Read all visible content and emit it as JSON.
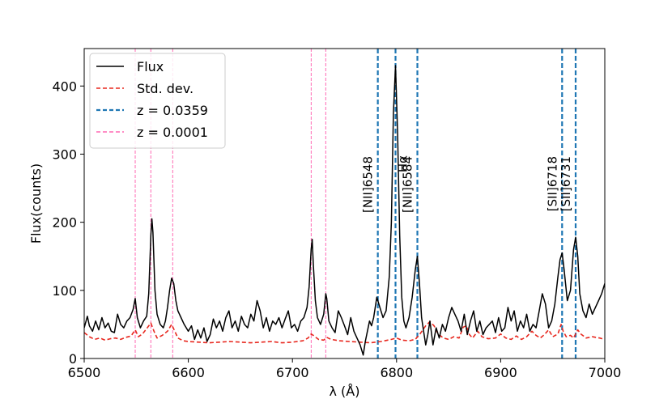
{
  "chart_data": {
    "type": "line",
    "title": "",
    "xlabel": "λ (Å)",
    "ylabel": "Flux(counts)",
    "xlim": [
      6500,
      7000
    ],
    "ylim": [
      0,
      455
    ],
    "xticks": [
      6500,
      6600,
      6700,
      6800,
      6900,
      7000
    ],
    "yticks": [
      0,
      100,
      200,
      300,
      400
    ],
    "grid": false,
    "legend_position": "top-left",
    "series": [
      {
        "name": "Flux",
        "color": "#000000",
        "style": "solid",
        "points": [
          [
            6500,
            45
          ],
          [
            6503,
            62
          ],
          [
            6505,
            48
          ],
          [
            6508,
            40
          ],
          [
            6511,
            55
          ],
          [
            6514,
            42
          ],
          [
            6517,
            60
          ],
          [
            6520,
            45
          ],
          [
            6523,
            52
          ],
          [
            6526,
            40
          ],
          [
            6529,
            38
          ],
          [
            6532,
            65
          ],
          [
            6535,
            50
          ],
          [
            6538,
            45
          ],
          [
            6541,
            55
          ],
          [
            6544,
            60
          ],
          [
            6547,
            72
          ],
          [
            6549,
            88
          ],
          [
            6551,
            60
          ],
          [
            6554,
            45
          ],
          [
            6557,
            55
          ],
          [
            6560,
            62
          ],
          [
            6562,
            95
          ],
          [
            6564,
            180
          ],
          [
            6565,
            205
          ],
          [
            6566,
            185
          ],
          [
            6568,
            100
          ],
          [
            6570,
            65
          ],
          [
            6573,
            50
          ],
          [
            6576,
            45
          ],
          [
            6578,
            55
          ],
          [
            6580,
            75
          ],
          [
            6582,
            100
          ],
          [
            6584,
            118
          ],
          [
            6586,
            110
          ],
          [
            6588,
            85
          ],
          [
            6590,
            70
          ],
          [
            6593,
            60
          ],
          [
            6596,
            50
          ],
          [
            6600,
            40
          ],
          [
            6603,
            48
          ],
          [
            6606,
            28
          ],
          [
            6609,
            42
          ],
          [
            6612,
            30
          ],
          [
            6615,
            45
          ],
          [
            6618,
            25
          ],
          [
            6621,
            35
          ],
          [
            6624,
            58
          ],
          [
            6627,
            45
          ],
          [
            6630,
            55
          ],
          [
            6633,
            40
          ],
          [
            6636,
            60
          ],
          [
            6639,
            70
          ],
          [
            6642,
            45
          ],
          [
            6645,
            55
          ],
          [
            6648,
            40
          ],
          [
            6651,
            62
          ],
          [
            6654,
            50
          ],
          [
            6657,
            45
          ],
          [
            6660,
            65
          ],
          [
            6663,
            55
          ],
          [
            6666,
            85
          ],
          [
            6669,
            70
          ],
          [
            6672,
            45
          ],
          [
            6675,
            60
          ],
          [
            6678,
            40
          ],
          [
            6681,
            55
          ],
          [
            6684,
            50
          ],
          [
            6687,
            60
          ],
          [
            6690,
            45
          ],
          [
            6693,
            58
          ],
          [
            6696,
            70
          ],
          [
            6699,
            45
          ],
          [
            6702,
            50
          ],
          [
            6705,
            40
          ],
          [
            6708,
            55
          ],
          [
            6711,
            60
          ],
          [
            6714,
            75
          ],
          [
            6716,
            105
          ],
          [
            6718,
            160
          ],
          [
            6719,
            175
          ],
          [
            6720,
            140
          ],
          [
            6722,
            85
          ],
          [
            6724,
            60
          ],
          [
            6727,
            50
          ],
          [
            6730,
            65
          ],
          [
            6732,
            95
          ],
          [
            6733,
            88
          ],
          [
            6735,
            55
          ],
          [
            6738,
            45
          ],
          [
            6741,
            38
          ],
          [
            6744,
            70
          ],
          [
            6747,
            60
          ],
          [
            6750,
            48
          ],
          [
            6753,
            35
          ],
          [
            6756,
            60
          ],
          [
            6759,
            40
          ],
          [
            6762,
            30
          ],
          [
            6765,
            20
          ],
          [
            6768,
            5
          ],
          [
            6770,
            25
          ],
          [
            6772,
            40
          ],
          [
            6774,
            55
          ],
          [
            6776,
            48
          ],
          [
            6778,
            60
          ],
          [
            6781,
            90
          ],
          [
            6784,
            75
          ],
          [
            6787,
            60
          ],
          [
            6790,
            70
          ],
          [
            6793,
            120
          ],
          [
            6795,
            200
          ],
          [
            6797,
            360
          ],
          [
            6799,
            430
          ],
          [
            6801,
            330
          ],
          [
            6803,
            180
          ],
          [
            6805,
            90
          ],
          [
            6807,
            55
          ],
          [
            6809,
            45
          ],
          [
            6812,
            60
          ],
          [
            6815,
            90
          ],
          [
            6818,
            130
          ],
          [
            6820,
            150
          ],
          [
            6822,
            110
          ],
          [
            6824,
            60
          ],
          [
            6826,
            40
          ],
          [
            6828,
            20
          ],
          [
            6830,
            35
          ],
          [
            6832,
            55
          ],
          [
            6835,
            20
          ],
          [
            6838,
            45
          ],
          [
            6841,
            30
          ],
          [
            6844,
            50
          ],
          [
            6847,
            40
          ],
          [
            6850,
            60
          ],
          [
            6853,
            75
          ],
          [
            6856,
            65
          ],
          [
            6859,
            55
          ],
          [
            6862,
            40
          ],
          [
            6865,
            65
          ],
          [
            6868,
            35
          ],
          [
            6871,
            55
          ],
          [
            6874,
            70
          ],
          [
            6877,
            40
          ],
          [
            6880,
            55
          ],
          [
            6883,
            35
          ],
          [
            6886,
            45
          ],
          [
            6889,
            50
          ],
          [
            6892,
            55
          ],
          [
            6895,
            38
          ],
          [
            6898,
            60
          ],
          [
            6901,
            40
          ],
          [
            6904,
            45
          ],
          [
            6907,
            75
          ],
          [
            6910,
            55
          ],
          [
            6913,
            70
          ],
          [
            6916,
            40
          ],
          [
            6919,
            55
          ],
          [
            6922,
            45
          ],
          [
            6925,
            65
          ],
          [
            6928,
            40
          ],
          [
            6931,
            50
          ],
          [
            6934,
            45
          ],
          [
            6937,
            70
          ],
          [
            6940,
            95
          ],
          [
            6943,
            80
          ],
          [
            6946,
            45
          ],
          [
            6949,
            55
          ],
          [
            6952,
            80
          ],
          [
            6955,
            120
          ],
          [
            6957,
            145
          ],
          [
            6959,
            155
          ],
          [
            6961,
            130
          ],
          [
            6964,
            85
          ],
          [
            6967,
            100
          ],
          [
            6970,
            160
          ],
          [
            6972,
            178
          ],
          [
            6974,
            150
          ],
          [
            6976,
            95
          ],
          [
            6979,
            70
          ],
          [
            6982,
            60
          ],
          [
            6985,
            80
          ],
          [
            6988,
            65
          ],
          [
            6991,
            75
          ],
          [
            6994,
            85
          ],
          [
            6997,
            95
          ],
          [
            7000,
            110
          ]
        ]
      },
      {
        "name": "Std. dev.",
        "color": "#e8281f",
        "style": "dashed",
        "points": [
          [
            6500,
            38
          ],
          [
            6505,
            32
          ],
          [
            6510,
            28
          ],
          [
            6515,
            30
          ],
          [
            6520,
            27
          ],
          [
            6525,
            29
          ],
          [
            6530,
            30
          ],
          [
            6535,
            28
          ],
          [
            6540,
            31
          ],
          [
            6545,
            33
          ],
          [
            6549,
            42
          ],
          [
            6552,
            32
          ],
          [
            6556,
            36
          ],
          [
            6560,
            44
          ],
          [
            6564,
            52
          ],
          [
            6567,
            40
          ],
          [
            6570,
            30
          ],
          [
            6575,
            34
          ],
          [
            6580,
            40
          ],
          [
            6584,
            50
          ],
          [
            6587,
            40
          ],
          [
            6590,
            30
          ],
          [
            6595,
            26
          ],
          [
            6600,
            25
          ],
          [
            6610,
            24
          ],
          [
            6620,
            23
          ],
          [
            6630,
            24
          ],
          [
            6640,
            25
          ],
          [
            6650,
            24
          ],
          [
            6660,
            23
          ],
          [
            6670,
            24
          ],
          [
            6680,
            25
          ],
          [
            6690,
            23
          ],
          [
            6700,
            24
          ],
          [
            6710,
            26
          ],
          [
            6715,
            30
          ],
          [
            6718,
            36
          ],
          [
            6720,
            34
          ],
          [
            6725,
            28
          ],
          [
            6730,
            27
          ],
          [
            6733,
            31
          ],
          [
            6737,
            28
          ],
          [
            6745,
            26
          ],
          [
            6755,
            25
          ],
          [
            6765,
            24
          ],
          [
            6775,
            23
          ],
          [
            6785,
            25
          ],
          [
            6795,
            28
          ],
          [
            6800,
            30
          ],
          [
            6805,
            27
          ],
          [
            6812,
            26
          ],
          [
            6818,
            28
          ],
          [
            6822,
            35
          ],
          [
            6828,
            48
          ],
          [
            6832,
            54
          ],
          [
            6836,
            48
          ],
          [
            6840,
            36
          ],
          [
            6845,
            30
          ],
          [
            6850,
            28
          ],
          [
            6855,
            32
          ],
          [
            6860,
            30
          ],
          [
            6864,
            46
          ],
          [
            6867,
            48
          ],
          [
            6870,
            35
          ],
          [
            6873,
            30
          ],
          [
            6878,
            40
          ],
          [
            6882,
            32
          ],
          [
            6888,
            29
          ],
          [
            6895,
            30
          ],
          [
            6900,
            36
          ],
          [
            6905,
            30
          ],
          [
            6910,
            28
          ],
          [
            6915,
            33
          ],
          [
            6920,
            28
          ],
          [
            6925,
            32
          ],
          [
            6930,
            40
          ],
          [
            6934,
            34
          ],
          [
            6938,
            30
          ],
          [
            6942,
            35
          ],
          [
            6946,
            42
          ],
          [
            6950,
            32
          ],
          [
            6955,
            36
          ],
          [
            6958,
            50
          ],
          [
            6960,
            40
          ],
          [
            6963,
            32
          ],
          [
            6967,
            34
          ],
          [
            6970,
            30
          ],
          [
            6974,
            42
          ],
          [
            6977,
            36
          ],
          [
            6982,
            30
          ],
          [
            6988,
            32
          ],
          [
            6995,
            30
          ],
          [
            7000,
            28
          ]
        ]
      }
    ],
    "vertical_lines": [
      {
        "name": "z = 0.0359",
        "color": "#1f77b4",
        "style": "dashed",
        "x": [
          6782,
          6799,
          6820,
          6959,
          6972
        ]
      },
      {
        "name": "z = 0.0001",
        "color": "#ff69b4",
        "style": "dashed",
        "x": [
          6549,
          6564,
          6585,
          6718,
          6732
        ]
      }
    ],
    "annotations": [
      {
        "text": "[NII]6548",
        "x": 6782
      },
      {
        "text": "Hα",
        "x": 6799
      },
      {
        "text": "[NII]6584",
        "x": 6820
      },
      {
        "text": "[SII]6718",
        "x": 6959
      },
      {
        "text": "[SII]6731",
        "x": 6972
      }
    ],
    "legend": [
      {
        "label": "Flux",
        "color": "#000000",
        "style": "solid"
      },
      {
        "label": "Std. dev.",
        "color": "#e8281f",
        "style": "dashed"
      },
      {
        "label": "z = 0.0359",
        "color": "#1f77b4",
        "style": "dashed"
      },
      {
        "label": "z = 0.0001",
        "color": "#ff69b4",
        "style": "dashed"
      }
    ]
  }
}
